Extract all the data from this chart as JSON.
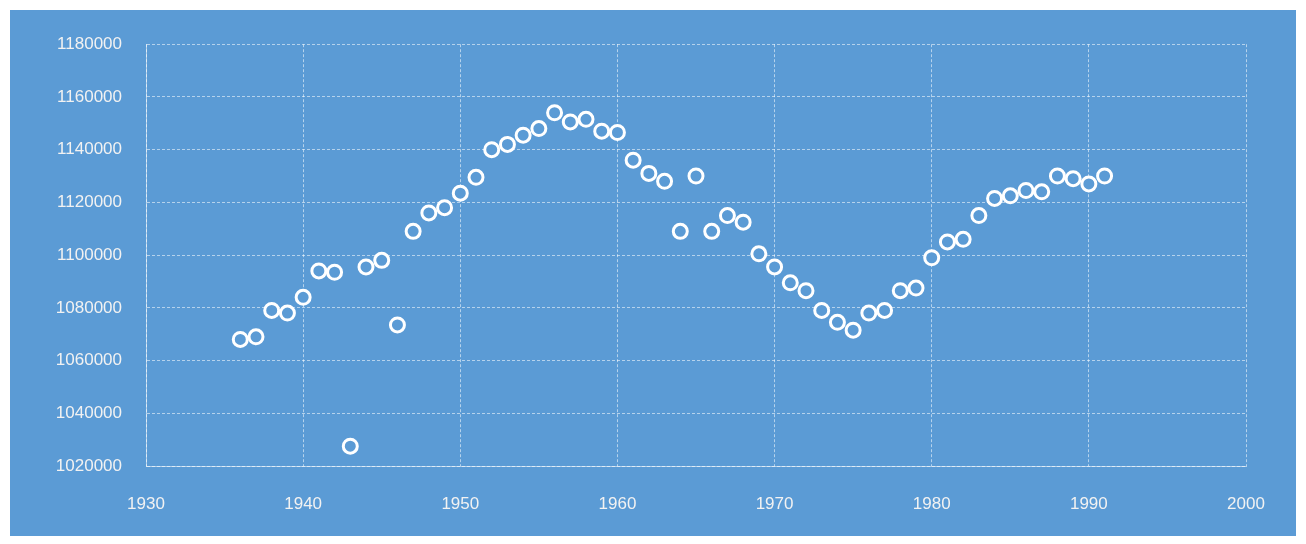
{
  "chart_data": {
    "type": "scatter",
    "x": [
      1936,
      1937,
      1938,
      1939,
      1940,
      1941,
      1942,
      1943,
      1944,
      1945,
      1946,
      1947,
      1948,
      1949,
      1950,
      1951,
      1952,
      1953,
      1954,
      1955,
      1956,
      1957,
      1958,
      1959,
      1960,
      1961,
      1962,
      1963,
      1964,
      1965,
      1966,
      1967,
      1968,
      1969,
      1970,
      1971,
      1972,
      1973,
      1974,
      1975,
      1976,
      1977,
      1978,
      1979,
      1980,
      1981,
      1982,
      1983,
      1984,
      1985,
      1986,
      1987,
      1988,
      1989,
      1990,
      1991
    ],
    "series": [
      {
        "color": "#ffffff",
        "values": [
          1068000,
          1069000,
          1079000,
          1078000,
          1084000,
          1094000,
          1093500,
          1027500,
          1095500,
          1098000,
          1073500,
          1109000,
          1116000,
          1118000,
          1123500,
          1129500,
          1140000,
          1142000,
          1145500,
          1148000,
          1154000,
          1150500,
          1151500,
          1147000,
          1146500,
          1136000,
          1131000,
          1128000,
          1109000,
          1130000,
          1109000,
          1115000,
          1112500,
          1100500,
          1095500,
          1089500,
          1086500,
          1079000,
          1074500,
          1071500,
          1078000,
          1079000,
          1086500,
          1087500,
          1099000,
          1105000,
          1106000,
          1115000,
          1121500,
          1122500,
          1124500,
          1124000,
          1130000,
          1129000,
          1127000,
          1130000
        ]
      }
    ],
    "xlim": [
      1930,
      2000
    ],
    "xticks": [
      1930,
      1940,
      1950,
      1960,
      1970,
      1980,
      1990,
      2000
    ],
    "ylim": [
      1020000,
      1180000
    ],
    "yticks": [
      1020000,
      1040000,
      1060000,
      1080000,
      1100000,
      1120000,
      1140000,
      1160000,
      1180000
    ],
    "grid": true,
    "legend": false,
    "marker": "circle"
  }
}
